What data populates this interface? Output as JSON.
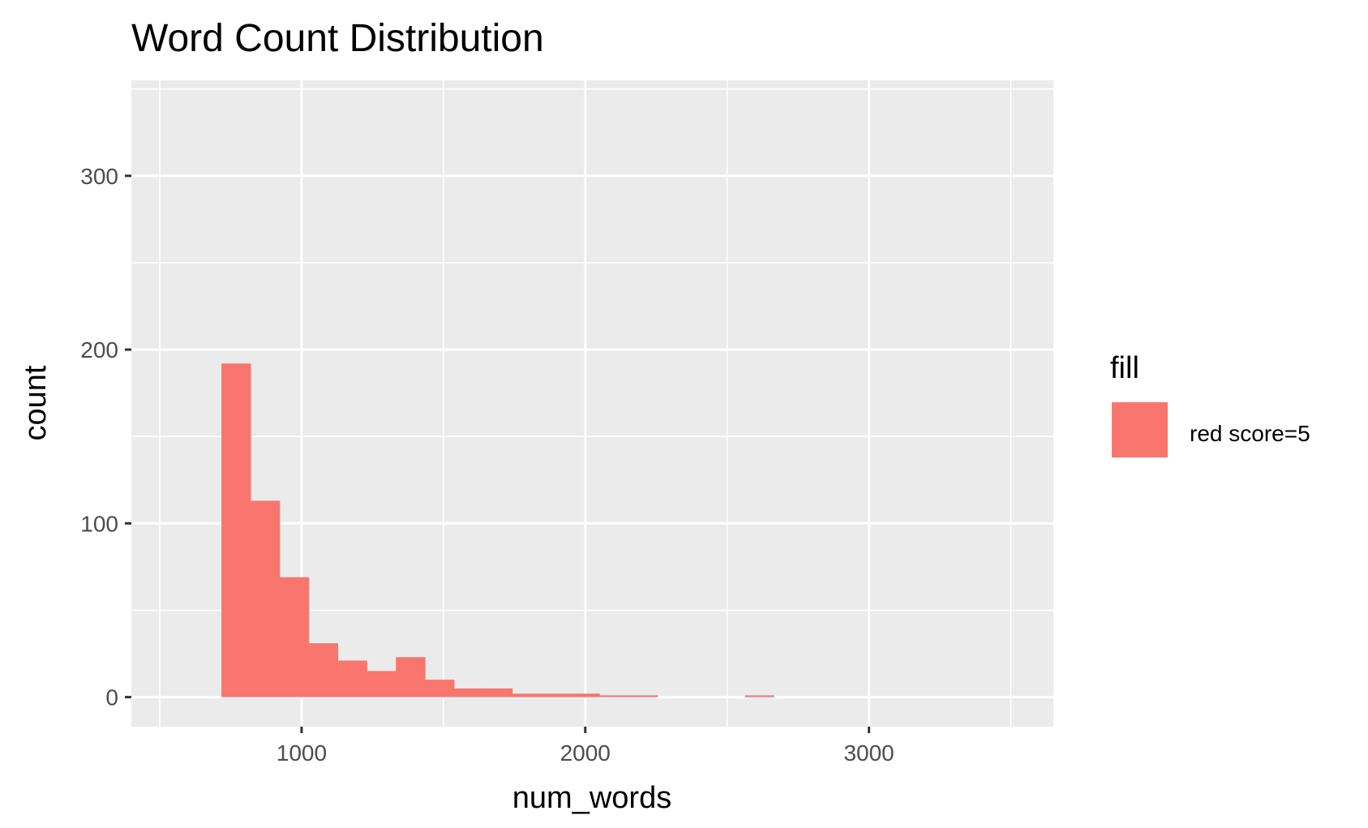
{
  "chart_data": {
    "type": "histogram",
    "title": "Word Count Distribution",
    "xlabel": "num_words",
    "ylabel": "count",
    "xlim": [
      400,
      3650
    ],
    "ylim": [
      -17,
      355
    ],
    "x_ticks": [
      1000,
      2000,
      3000
    ],
    "x_tick_labels": [
      "1000",
      "2000",
      "3000"
    ],
    "y_ticks": [
      0,
      100,
      200,
      300
    ],
    "y_tick_labels": [
      "0",
      "100",
      "200",
      "300"
    ],
    "x_minor": [
      500,
      1500,
      2500,
      3500
    ],
    "y_minor": [
      50,
      150,
      250,
      350
    ],
    "grid": true,
    "legend": {
      "title": "fill",
      "position": "right",
      "entries": [
        {
          "label": "red score=5",
          "color": "#F8766D"
        }
      ]
    },
    "bin_width": 102.5,
    "bins": [
      {
        "x0": 717.5,
        "count": 192
      },
      {
        "x0": 820.0,
        "count": 113
      },
      {
        "x0": 922.5,
        "count": 69
      },
      {
        "x0": 1025.0,
        "count": 31
      },
      {
        "x0": 1127.5,
        "count": 21
      },
      {
        "x0": 1230.0,
        "count": 15
      },
      {
        "x0": 1332.5,
        "count": 23
      },
      {
        "x0": 1435.0,
        "count": 10
      },
      {
        "x0": 1537.5,
        "count": 5
      },
      {
        "x0": 1640.0,
        "count": 5
      },
      {
        "x0": 1742.5,
        "count": 2
      },
      {
        "x0": 1845.0,
        "count": 2
      },
      {
        "x0": 1947.5,
        "count": 2
      },
      {
        "x0": 2050.0,
        "count": 1
      },
      {
        "x0": 2152.5,
        "count": 1
      },
      {
        "x0": 2562.5,
        "count": 1
      }
    ],
    "colors": {
      "bar": "#F8766D",
      "panel": "#EBEBEB",
      "grid": "#FFFFFF",
      "tick": "#333333"
    }
  }
}
